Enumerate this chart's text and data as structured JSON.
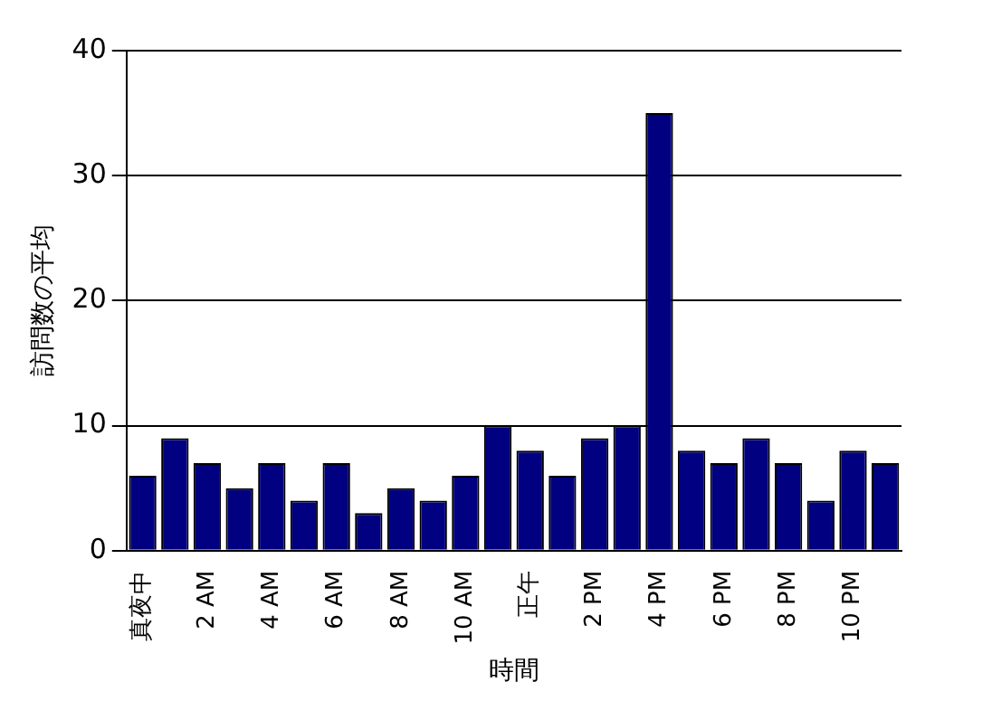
{
  "chart_data": {
    "type": "bar",
    "xlabel": "時間",
    "ylabel": "訪問数の平均",
    "categories": [
      "真夜中",
      null,
      "2 AM",
      null,
      "4 AM",
      null,
      "6 AM",
      null,
      "8 AM",
      null,
      "10 AM",
      null,
      "正午",
      null,
      "2 PM",
      null,
      "4 PM",
      null,
      "6 PM",
      null,
      "8 PM",
      null,
      "10 PM",
      null
    ],
    "values": [
      6,
      9,
      7,
      5,
      7,
      4,
      7,
      3,
      5,
      4,
      6,
      10,
      8,
      6,
      9,
      10,
      35,
      8,
      7,
      9,
      7,
      4,
      8,
      7
    ],
    "color": "#000080",
    "ylim": [
      0,
      40
    ],
    "yticks": [
      0,
      10,
      20,
      30,
      40
    ],
    "grid": "y",
    "legend": false
  }
}
